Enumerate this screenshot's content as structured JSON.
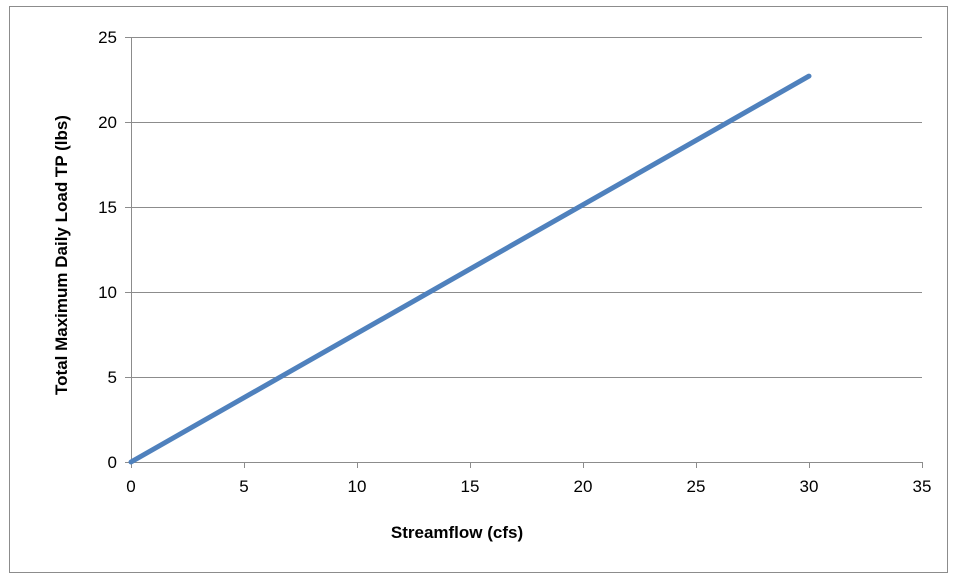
{
  "chart_data": {
    "type": "line",
    "title": "",
    "xlabel": "Streamflow (cfs)",
    "ylabel": "Total Maximum  Daily  Load TP  (lbs)",
    "xlim": [
      0,
      35
    ],
    "ylim": [
      0,
      25
    ],
    "x_ticks": [
      0,
      5,
      10,
      15,
      20,
      25,
      30,
      35
    ],
    "y_ticks": [
      0,
      5,
      10,
      15,
      20,
      25
    ],
    "x_tick_labels": [
      "0",
      "5",
      "10",
      "15",
      "20",
      "25",
      "30",
      "35"
    ],
    "y_tick_labels": [
      "0",
      "5",
      "10",
      "15",
      "20",
      "25"
    ],
    "grid": "horizontal",
    "legend": "none",
    "series": [
      {
        "color": "#4f81bd",
        "x": [
          0,
          30
        ],
        "y": [
          0,
          22.7
        ]
      }
    ]
  }
}
